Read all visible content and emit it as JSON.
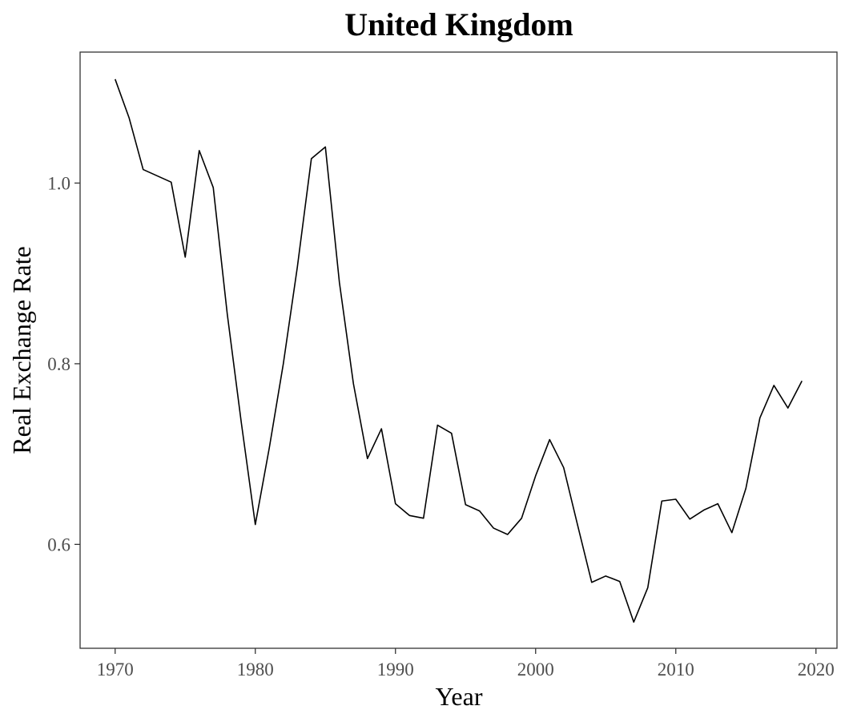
{
  "chart_data": {
    "type": "line",
    "title": "United Kingdom",
    "xlabel": "Year",
    "ylabel": "Real Exchange Rate",
    "xlim": [
      1967.5,
      2021.5
    ],
    "ylim": [
      0.485,
      1.145
    ],
    "xticks": [
      1970,
      1980,
      1990,
      2000,
      2010,
      2020
    ],
    "yticks": [
      0.6,
      0.8,
      1.0
    ],
    "ytick_labels": [
      "0.6",
      "0.8",
      "1.0"
    ],
    "grid": false,
    "series": [
      {
        "color": "#000000",
        "x": [
          1970,
          1971,
          1972,
          1973,
          1974,
          1975,
          1976,
          1977,
          1978,
          1979,
          1980,
          1981,
          1982,
          1983,
          1984,
          1985,
          1986,
          1987,
          1988,
          1989,
          1990,
          1991,
          1992,
          1993,
          1994,
          1995,
          1996,
          1997,
          1998,
          1999,
          2000,
          2001,
          2002,
          2003,
          2004,
          2005,
          2006,
          2007,
          2008,
          2009,
          2010,
          2011,
          2012,
          2013,
          2014,
          2015,
          2016,
          2017,
          2018,
          2019
        ],
        "y": [
          1.115,
          1.072,
          1.015,
          1.008,
          1.001,
          0.918,
          1.036,
          0.995,
          0.855,
          0.735,
          0.622,
          0.707,
          0.8,
          0.907,
          1.027,
          1.04,
          0.89,
          0.778,
          0.695,
          0.728,
          0.645,
          0.632,
          0.629,
          0.732,
          0.723,
          0.644,
          0.637,
          0.618,
          0.611,
          0.629,
          0.676,
          0.716,
          0.685,
          0.621,
          0.558,
          0.565,
          0.559,
          0.514,
          0.552,
          0.648,
          0.65,
          0.628,
          0.638,
          0.645,
          0.613,
          0.662,
          0.74,
          0.776,
          0.751,
          0.781
        ]
      }
    ]
  }
}
